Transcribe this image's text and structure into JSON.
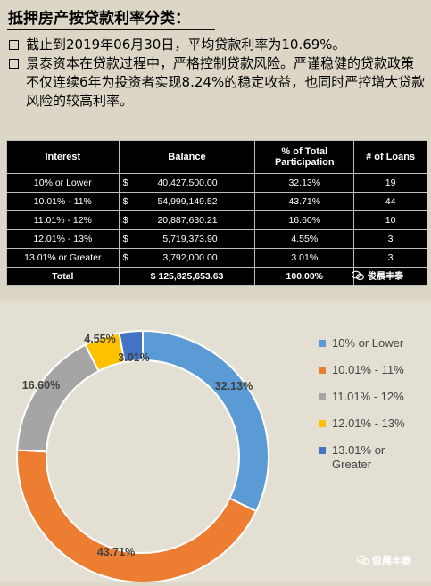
{
  "header": {
    "title": "抵押房产按贷款利率分类：",
    "bullets": [
      "截止到2019年06月30日，平均贷款利率为10.69%。",
      "景泰资本在贷款过程中，严格控制贷款风险。严谨稳健的贷款政策不仅连续6年为投资者实现8.24%的稳定收益，也同时严控增大贷款风险的较高利率。"
    ]
  },
  "table": {
    "headers": [
      "Interest",
      "Balance",
      "% of Total Participation",
      "# of Loans"
    ],
    "rows": [
      {
        "interest": "10% or Lower",
        "dollar": "$",
        "balance": "40,427,500.00",
        "pct": "32.13%",
        "loans": "19"
      },
      {
        "interest": "10.01% - 11%",
        "dollar": "$",
        "balance": "54,999,149.52",
        "pct": "43.71%",
        "loans": "44"
      },
      {
        "interest": "11.01% - 12%",
        "dollar": "$",
        "balance": "20,887,630.21",
        "pct": "16.60%",
        "loans": "10"
      },
      {
        "interest": "12.01% - 13%",
        "dollar": "$",
        "balance": "5,719,373.90",
        "pct": "4.55%",
        "loans": "3"
      },
      {
        "interest": "13.01% or Greater",
        "dollar": "$",
        "balance": "3,792,000.00",
        "pct": "3.01%",
        "loans": "3"
      }
    ],
    "total": {
      "label": "Total",
      "balance": "$ 125,825,653.63",
      "pct": "100.00%"
    }
  },
  "watermark": "俊晨丰泰",
  "chart_data": {
    "type": "pie",
    "categories": [
      "10% or Lower",
      "10.01% - 11%",
      "11.01% - 12%",
      "12.01% - 13%",
      "13.01% or Greater"
    ],
    "values": [
      32.13,
      43.71,
      16.6,
      4.55,
      3.01
    ],
    "labels": [
      "32.13%",
      "43.71%",
      "16.60%",
      "4.55%",
      "3.01%"
    ],
    "colors": [
      "#5b9bd5",
      "#ed7d31",
      "#a5a5a5",
      "#ffc000",
      "#4472c4"
    ],
    "legend_position": "right"
  }
}
